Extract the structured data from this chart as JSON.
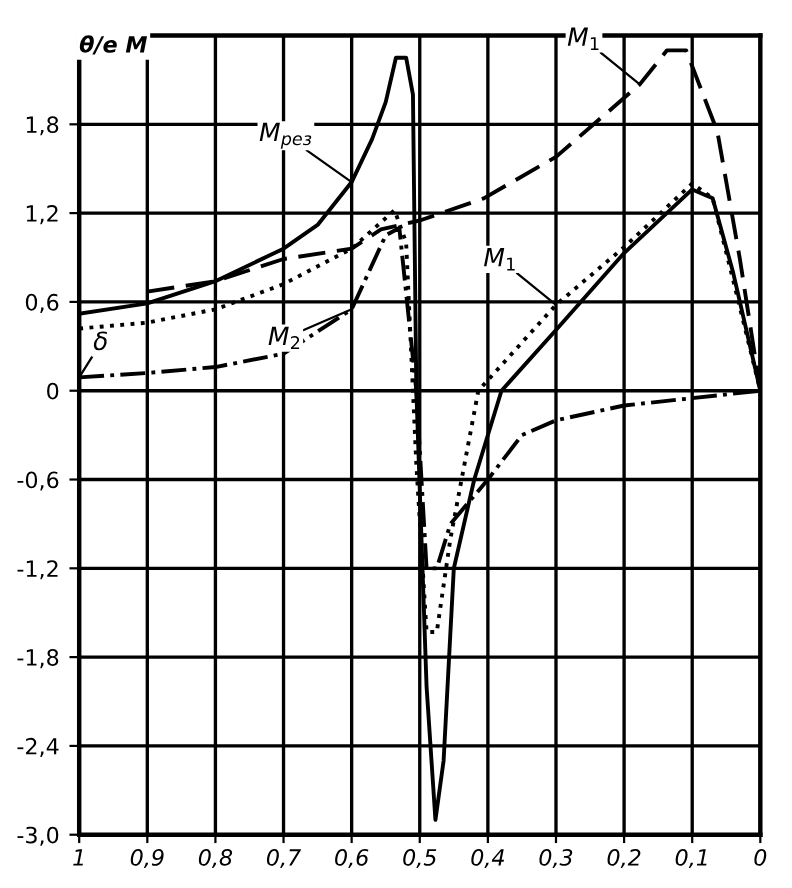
{
  "chart_data": {
    "type": "line",
    "ylabel": "θ/e M",
    "xlim": [
      1,
      0
    ],
    "ylim": [
      -3.0,
      2.4
    ],
    "xticks": [
      {
        "value": 1,
        "label": "1"
      },
      {
        "value": 0.9,
        "label": "0,9"
      },
      {
        "value": 0.8,
        "label": "0,8"
      },
      {
        "value": 0.7,
        "label": "0,7"
      },
      {
        "value": 0.6,
        "label": "0,6"
      },
      {
        "value": 0.5,
        "label": "0,5"
      },
      {
        "value": 0.4,
        "label": "0,4"
      },
      {
        "value": 0.3,
        "label": "0,3"
      },
      {
        "value": 0.2,
        "label": "0,2"
      },
      {
        "value": 0.1,
        "label": "0,1"
      },
      {
        "value": 0,
        "label": "0"
      }
    ],
    "yticks": [
      {
        "value": 1.8,
        "label": "1,8"
      },
      {
        "value": 1.2,
        "label": "1,2"
      },
      {
        "value": 0.6,
        "label": "0,6"
      },
      0,
      {
        "value": -0.6,
        "label": "-0,6"
      },
      {
        "value": -1.2,
        "label": "-1,2"
      },
      {
        "value": -1.8,
        "label": "-1,8"
      },
      {
        "value": -2.4,
        "label": "-2,4"
      },
      {
        "value": -3.0,
        "label": "-3,0"
      }
    ],
    "grid": true,
    "series": [
      {
        "color": "#000000",
        "line_style": "solid",
        "x": [
          1,
          0.9,
          0.8,
          0.7,
          0.65,
          0.6,
          0.57,
          0.55,
          0.535,
          0.52,
          0.51,
          0.505,
          0.49,
          0.477,
          0.465,
          0.45,
          0.42,
          0.38,
          0.3,
          0.2,
          0.1,
          0.07,
          0.04,
          0
        ],
        "values": [
          0.52,
          0.59,
          0.74,
          0.96,
          1.12,
          1.41,
          1.7,
          1.95,
          2.25,
          2.25,
          2.0,
          0.0,
          -2.0,
          -2.9,
          -2.5,
          -1.2,
          -0.6,
          0.0,
          0.41,
          0.93,
          1.36,
          1.3,
          0.8,
          0
        ]
      },
      {
        "color": "#000000",
        "line_style": "dashed",
        "x": [
          0.9,
          0.8,
          0.7,
          0.6,
          0.557,
          0.5,
          0.406,
          0.3,
          0.177,
          0.137,
          0.109,
          0.063,
          0.03,
          0
        ],
        "values": [
          0.67,
          0.74,
          0.89,
          0.96,
          1.09,
          1.15,
          1.3,
          1.58,
          2.07,
          2.3,
          2.3,
          1.75,
          0.89,
          0
        ]
      },
      {
        "color": "#000000",
        "line_style": "dotted",
        "x": [
          1,
          0.9,
          0.8,
          0.7,
          0.6,
          0.537,
          0.52,
          0.505,
          0.49,
          0.475,
          0.455,
          0.414,
          0.3,
          0.2,
          0.1,
          0.07,
          0.04,
          0
        ],
        "values": [
          0.42,
          0.46,
          0.55,
          0.72,
          0.96,
          1.22,
          1.0,
          -0.5,
          -1.63,
          -1.63,
          -1.0,
          0.0,
          0.58,
          0.97,
          1.4,
          1.3,
          0.75,
          0
        ]
      },
      {
        "color": "#000000",
        "line_style": "dashdot",
        "x": [
          1,
          0.9,
          0.8,
          0.7,
          0.6,
          0.57,
          0.55,
          0.53,
          0.505,
          0.49,
          0.475,
          0.455,
          0.4,
          0.35,
          0.3,
          0.2,
          0.1,
          0
        ],
        "values": [
          0.09,
          0.12,
          0.16,
          0.25,
          0.55,
          0.85,
          1.05,
          1.1,
          0.0,
          -1.2,
          -1.2,
          -0.9,
          -0.6,
          -0.3,
          -0.2,
          -0.1,
          -0.05,
          0
        ]
      }
    ],
    "annotations": [
      {
        "text": "M$_{рез}$",
        "x": 0.6,
        "y": 1.41
      },
      {
        "text": "M$_{1}$",
        "x": 0.177,
        "y": 2.07
      },
      {
        "text": "M$_{1}$",
        "x": 0.3,
        "y": 0.58
      },
      {
        "text": "M$_{2}$",
        "x": 0.6,
        "y": 0.55
      },
      {
        "text": "δ",
        "x": 1,
        "y": 0.09
      }
    ]
  }
}
